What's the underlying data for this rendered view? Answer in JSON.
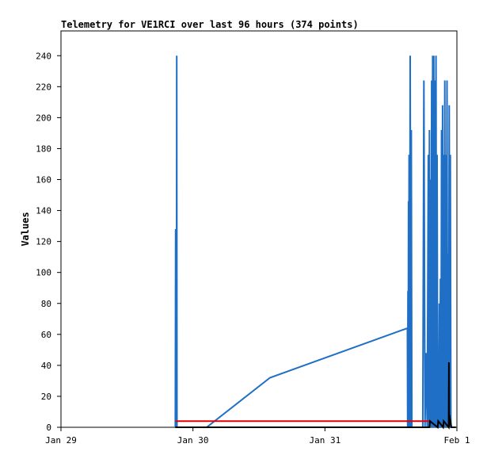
{
  "chart_data": {
    "type": "line",
    "title": "Telemetry for VE1RCI over last 96 hours (374 points)",
    "ylabel": "Values",
    "xlabel": "",
    "ylim": [
      0,
      256
    ],
    "yticks": [
      0,
      20,
      40,
      60,
      80,
      100,
      120,
      140,
      160,
      180,
      200,
      220,
      240
    ],
    "xlim": [
      0,
      72
    ],
    "xticks": [
      {
        "value": 0,
        "label": "Jan 29"
      },
      {
        "value": 24,
        "label": "Jan 30"
      },
      {
        "value": 48,
        "label": "Jan 31"
      },
      {
        "value": 72,
        "label": "Feb 1"
      }
    ],
    "grid": false,
    "series": [
      {
        "color": "#1f6fc6",
        "x": [
          20.8,
          20.85,
          20.9,
          20.95,
          21.0,
          21.05,
          21.1,
          21.15,
          21.2,
          21.25,
          22.0,
          26.5,
          38.0,
          63.0,
          63.05,
          63.1,
          63.15,
          63.2,
          63.25,
          63.3,
          63.35,
          63.4,
          63.5,
          63.6,
          63.7,
          63.8,
          63.9,
          64.0,
          64.1,
          64.2,
          64.3,
          64.5,
          64.7,
          64.9,
          65.0,
          65.1,
          65.3,
          65.5,
          65.7,
          65.8,
          66.0,
          66.2,
          66.4,
          66.6,
          66.8,
          66.9,
          67.0,
          67.1,
          67.2,
          67.3,
          67.4,
          67.5,
          67.6,
          67.7,
          67.8,
          67.9,
          68.0,
          68.1,
          68.2,
          68.3,
          68.4,
          68.5,
          68.6,
          68.7,
          68.8,
          68.9,
          69.0,
          69.1,
          69.2,
          69.3,
          69.4,
          69.5,
          69.6,
          69.7,
          69.8,
          69.9,
          70.0,
          70.1,
          70.2,
          70.3,
          70.4,
          70.5,
          70.6,
          70.7,
          70.8,
          70.9,
          71.0,
          71.1,
          71.2,
          71.3,
          71.4,
          71.5,
          71.6,
          71.7,
          71.8
        ],
        "values": [
          0,
          128,
          0,
          120,
          0,
          240,
          0,
          0,
          0,
          0,
          0,
          0,
          32,
          64,
          0,
          88,
          0,
          146,
          0,
          176,
          30,
          0,
          240,
          0,
          192,
          0,
          0,
          0,
          0,
          0,
          0,
          0,
          0,
          0,
          0,
          0,
          0,
          0,
          0,
          0,
          224,
          0,
          48,
          0,
          176,
          0,
          192,
          0,
          160,
          0,
          224,
          0,
          240,
          0,
          240,
          0,
          224,
          0,
          240,
          0,
          176,
          0,
          0,
          0,
          80,
          0,
          96,
          0,
          192,
          0,
          208,
          0,
          176,
          0,
          224,
          0,
          176,
          0,
          224,
          0,
          112,
          0,
          208,
          0,
          176,
          0,
          0,
          0,
          0,
          0,
          0,
          0,
          0,
          0,
          0
        ]
      },
      {
        "color": "#e00000",
        "x": [
          20.8,
          67.0
        ],
        "values": [
          4,
          4
        ]
      },
      {
        "color": "#000000",
        "x": [
          20.8,
          67.0,
          67.1,
          68.5,
          68.6,
          69.5,
          69.6,
          70.5,
          70.55,
          70.6,
          70.65,
          71.0,
          71.8
        ],
        "values": [
          0,
          0,
          4,
          0,
          4,
          0,
          4,
          0,
          42,
          0,
          8,
          0,
          0
        ]
      }
    ]
  }
}
